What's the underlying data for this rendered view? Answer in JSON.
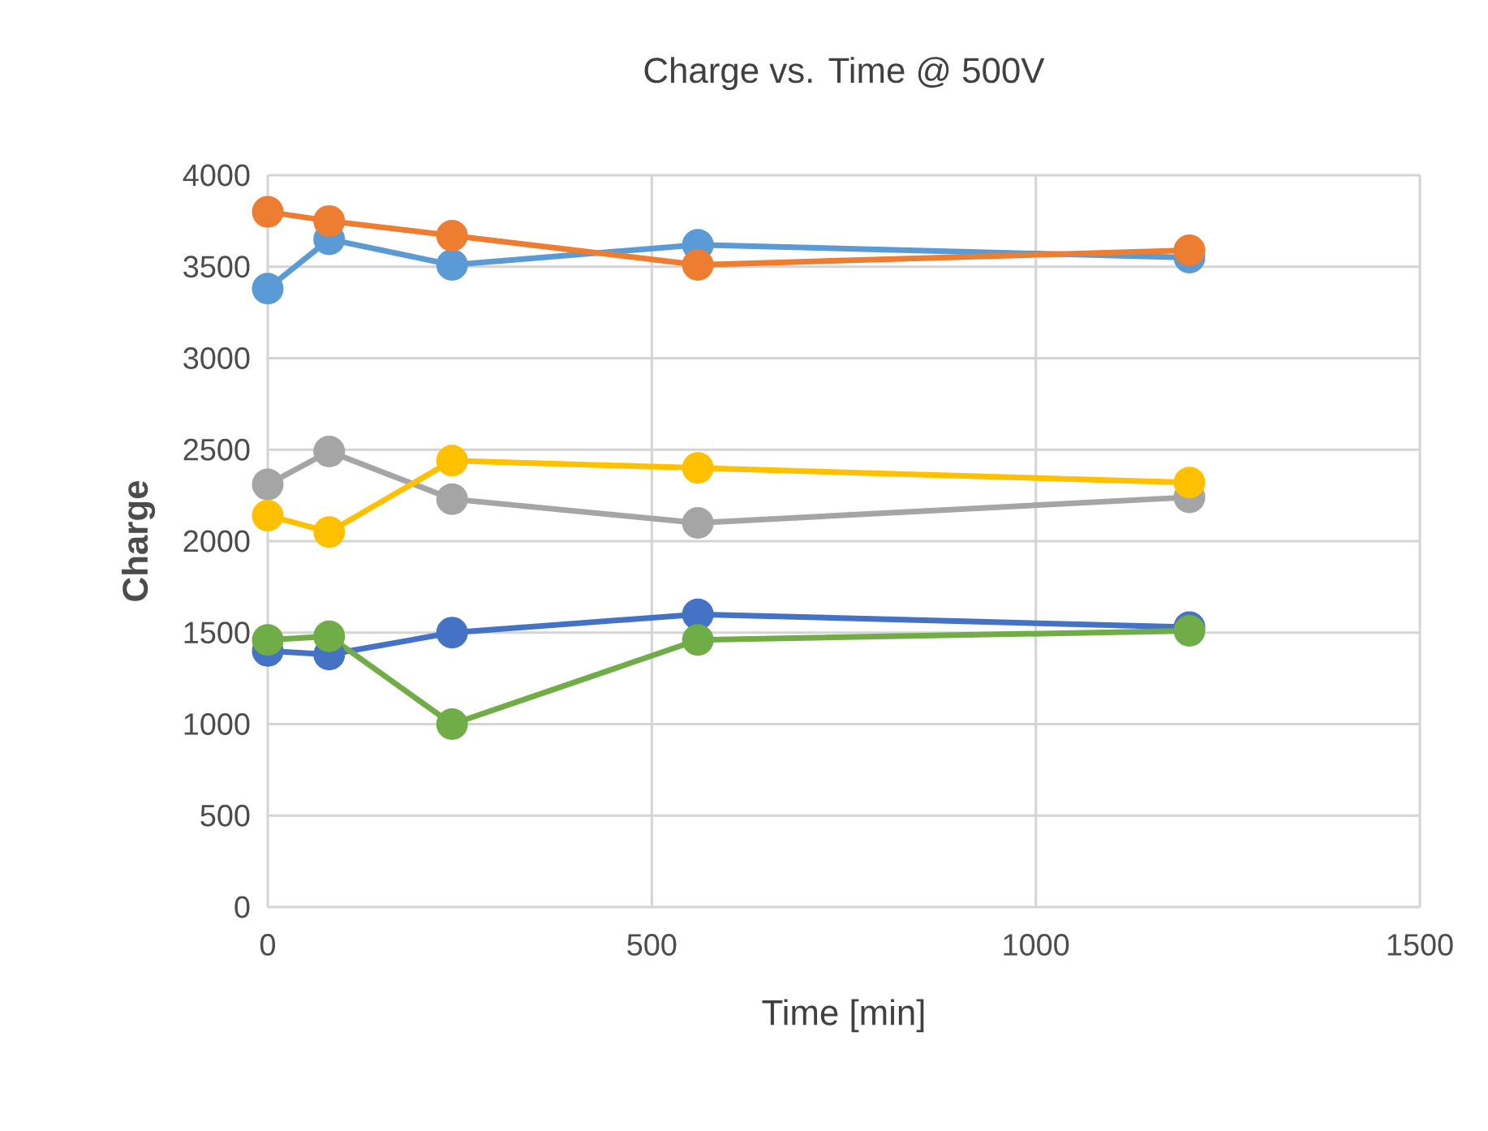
{
  "chart_data": {
    "type": "line",
    "title": "Charge vs. Time @ 500V",
    "xlabel": "Time [min]",
    "ylabel": "Charge",
    "x": [
      0,
      80,
      240,
      560,
      1200
    ],
    "series": [
      {
        "color": "#5b9bd5",
        "values": [
          3380,
          3650,
          3510,
          3620,
          3550
        ]
      },
      {
        "color": "#ed7d31",
        "values": [
          3800,
          3750,
          3670,
          3510,
          3590
        ]
      },
      {
        "color": "#a5a5a5",
        "values": [
          2310,
          2490,
          2230,
          2100,
          2240
        ]
      },
      {
        "color": "#ffc000",
        "values": [
          2140,
          2050,
          2440,
          2400,
          2320
        ]
      },
      {
        "color": "#4472c4",
        "values": [
          1400,
          1380,
          1500,
          1600,
          1530
        ]
      },
      {
        "color": "#70ad47",
        "values": [
          1460,
          1480,
          1000,
          1460,
          1510
        ]
      }
    ],
    "xlim": [
      0,
      1500
    ],
    "ylim": [
      0,
      4000
    ],
    "xticks": [
      0,
      500,
      1000,
      1500
    ],
    "yticks": [
      0,
      500,
      1000,
      1500,
      2000,
      2500,
      3000,
      3500,
      4000
    ],
    "grid": true,
    "marker": "circle",
    "line_style": "solid"
  }
}
